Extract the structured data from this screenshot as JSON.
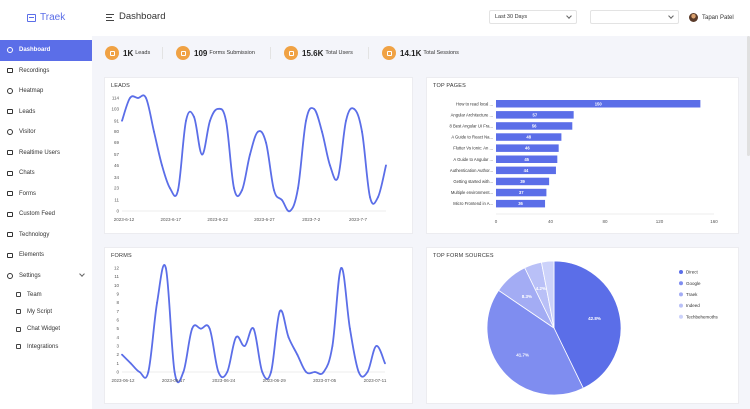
{
  "brand": {
    "name": "Traek"
  },
  "sidebar": {
    "items": [
      {
        "label": "Dashboard",
        "icon": "dashboard-icon",
        "active": true
      },
      {
        "label": "Recordings",
        "icon": "video-icon"
      },
      {
        "label": "Heatmap",
        "icon": "eye-icon"
      },
      {
        "label": "Leads",
        "icon": "leads-icon"
      },
      {
        "label": "Visitor",
        "icon": "visitor-icon"
      },
      {
        "label": "Realtime Users",
        "icon": "realtime-users-icon"
      },
      {
        "label": "Chats",
        "icon": "chat-icon"
      },
      {
        "label": "Forms",
        "icon": "form-icon"
      },
      {
        "label": "Custom Feed",
        "icon": "feed-icon"
      },
      {
        "label": "Technology",
        "icon": "technology-icon"
      },
      {
        "label": "Elements",
        "icon": "elements-icon"
      },
      {
        "label": "Settings",
        "icon": "gear-icon"
      }
    ],
    "settings_sub": [
      {
        "label": "Team",
        "icon": "team-icon"
      },
      {
        "label": "My Script",
        "icon": "code-icon"
      },
      {
        "label": "Chat Widget",
        "icon": "chat-widget-icon"
      },
      {
        "label": "Integrations",
        "icon": "integrations-icon"
      }
    ]
  },
  "header": {
    "title": "Dashboard",
    "date_range": "Last 30 Days",
    "site_select": "",
    "user_name": "Tapan Patel"
  },
  "stats": [
    {
      "value": "1K",
      "label": "Leads"
    },
    {
      "value": "109",
      "label": "Forms Submission"
    },
    {
      "value": "15.6K",
      "label": "Total Users"
    },
    {
      "value": "14.1K",
      "label": "Total Sessions"
    }
  ],
  "colors": {
    "accent": "#5b6ee8",
    "stat_icon": "#f0a244",
    "line": "#5b6ee8",
    "bar": "#5b6ee8"
  },
  "chart_data": [
    {
      "type": "line",
      "title": "LEADS",
      "x_ticks": [
        "2023-6-12",
        "2023-6-17",
        "2023-6-22",
        "2023-6-27",
        "2023-7-2",
        "2023-7-7"
      ],
      "y_ticks": [
        0,
        11,
        23,
        34,
        46,
        57,
        69,
        80,
        91,
        103,
        114
      ],
      "ylim": [
        0,
        114
      ],
      "values": [
        91,
        114,
        114,
        114,
        80,
        46,
        23,
        21,
        91,
        95,
        57,
        91,
        103,
        91,
        23,
        21,
        57,
        80,
        69,
        21,
        11,
        0,
        23,
        91,
        103,
        80,
        46,
        34,
        91,
        103,
        80,
        14,
        14,
        46
      ]
    },
    {
      "type": "bar",
      "title": "TOP PAGES",
      "orientation": "horizontal",
      "categories": [
        "How to read local ...",
        "Angular Architecture ...",
        "8 Best Angular UI Fra...",
        "A Guide to React Na...",
        "Flutter Vs Ionic: An ...",
        "A Guide to Angular ...",
        "Authentication Author...",
        "Getting started with...",
        "Multiple environment...",
        "Micro Frontend in A..."
      ],
      "values": [
        150,
        57,
        56,
        48,
        46,
        45,
        44,
        39,
        37,
        36
      ],
      "x_ticks": [
        0,
        40,
        80,
        120,
        160
      ],
      "xlim": [
        0,
        160
      ]
    },
    {
      "type": "line",
      "title": "FORMS",
      "x_ticks": [
        "2023-06-12",
        "2023-06-17",
        "2023-06-24",
        "2023-06-29",
        "2023-07-05",
        "2023-07-11"
      ],
      "y_ticks": [
        0,
        1,
        2,
        3,
        4,
        5,
        6,
        7,
        8,
        9,
        10,
        11,
        12
      ],
      "ylim": [
        0,
        12
      ],
      "values": [
        2,
        1,
        0,
        0,
        8,
        12,
        0,
        0,
        5,
        5,
        5,
        0,
        0,
        4,
        3,
        5,
        0,
        0,
        7,
        4,
        2,
        0,
        0,
        0,
        3,
        12,
        5,
        0,
        0,
        3,
        1
      ]
    },
    {
      "type": "pie",
      "title": "TOP FORM SOURCES",
      "labels": [
        "Direct",
        "Google",
        "Traek",
        "Indeed",
        "Techbehemoths"
      ],
      "values": [
        42.8,
        41.7,
        8.3,
        4.2,
        3.0
      ],
      "value_labels": [
        "42.8%",
        "41.7%",
        "8.3%",
        "4.2%",
        ""
      ],
      "colors": [
        "#5b6ee8",
        "#7f8df0",
        "#a3acf4",
        "#b9c0f7",
        "#ccd2fa"
      ],
      "legend_position": "right"
    }
  ]
}
